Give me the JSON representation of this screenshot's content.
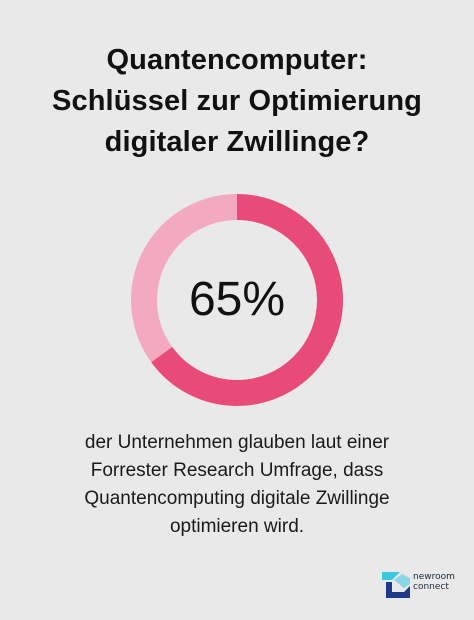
{
  "title_lines": [
    "Quantencomputer:",
    "Schlüssel zur Optimierung",
    "digitaler Zwillinge?"
  ],
  "chart_data": {
    "type": "pie",
    "value_label": "65%",
    "slices": [
      {
        "value": 65,
        "color": "#e84b78"
      },
      {
        "value": 35,
        "color": "#f3a9c0"
      }
    ]
  },
  "caption_lines": [
    "der Unternehmen glauben laut einer",
    "Forrester Research Umfrage, dass",
    "Quantencomputing digitale Zwillinge",
    "optimieren wird."
  ],
  "logo": {
    "line1": "newroom",
    "line2": "connect",
    "colors": {
      "cyan": "#3cc7e0",
      "navy": "#1d3a8a"
    }
  }
}
